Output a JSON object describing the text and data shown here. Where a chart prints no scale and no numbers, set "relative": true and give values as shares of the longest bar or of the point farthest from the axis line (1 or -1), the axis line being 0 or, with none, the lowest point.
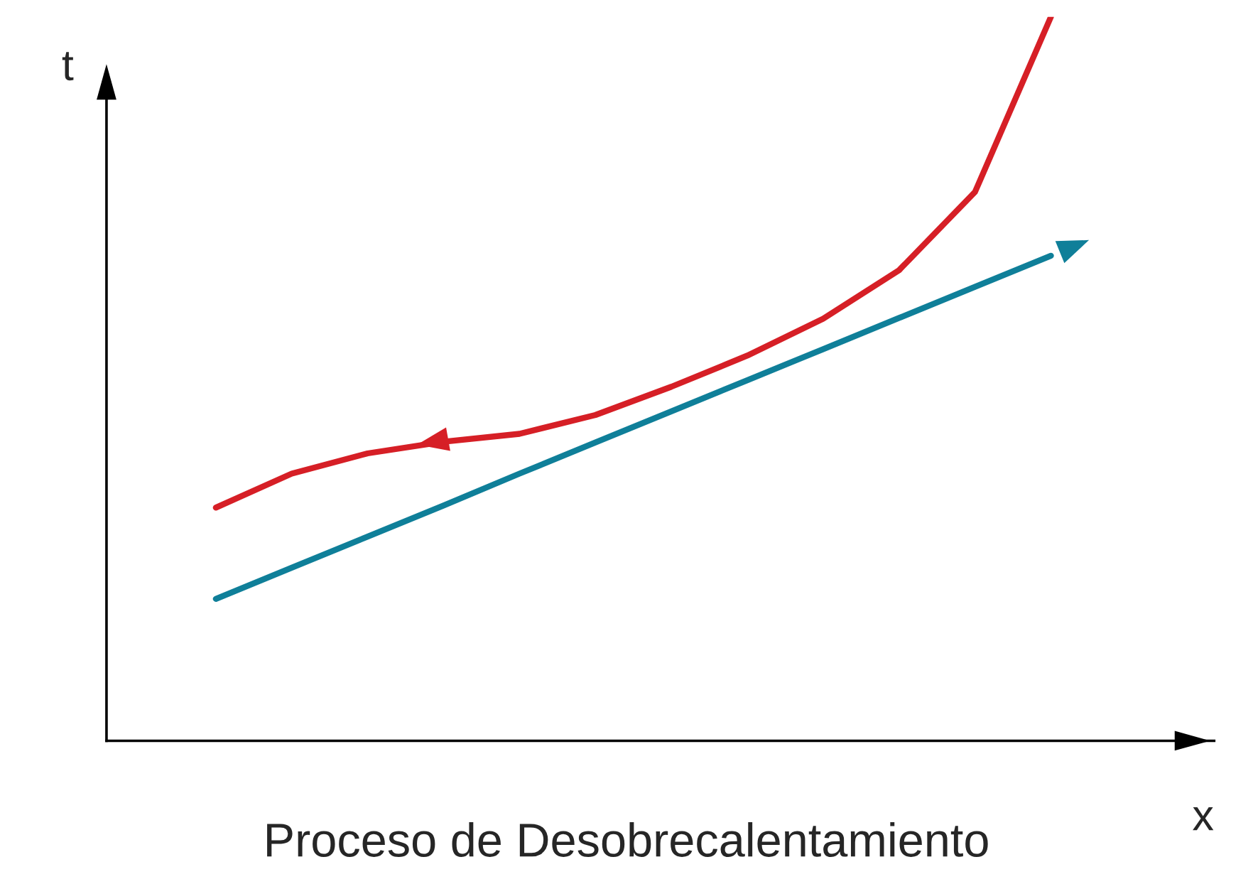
{
  "chart_data": {
    "type": "line",
    "relative": true,
    "title": "Proceso de Desobrecalentamiento",
    "xlabel": "x",
    "ylabel": "t",
    "marker": "none",
    "line_style": "solid",
    "categories": [
      null,
      null,
      null,
      null,
      null,
      null,
      null,
      null,
      null,
      null,
      null,
      null
    ],
    "series": [
      {
        "color": "#d61f26",
        "values": [
          0.322,
          0.369,
          0.397,
          0.413,
          0.424,
          0.45,
          0.489,
          0.532,
          0.583,
          0.65,
          0.758,
          1.0
        ]
      },
      {
        "color": "#0f7f99",
        "values": [
          0.196,
          0.239,
          0.282,
          0.325,
          0.369,
          0.412,
          0.455,
          0.498,
          0.541,
          0.584,
          0.627,
          0.67
        ]
      }
    ]
  }
}
